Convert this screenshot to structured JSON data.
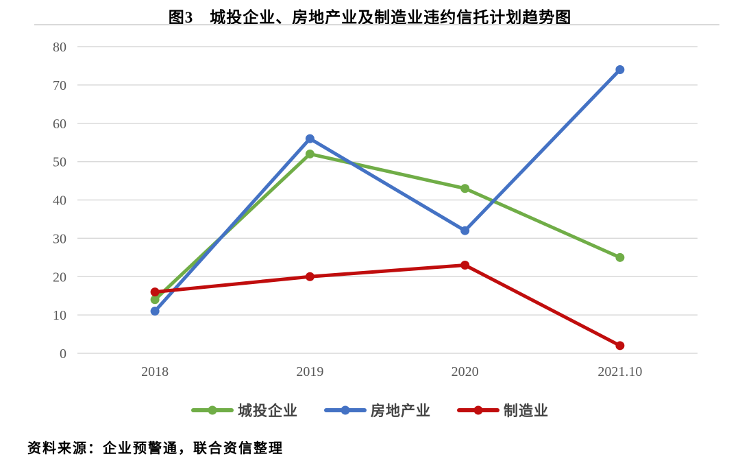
{
  "title": "图3　城投企业、房地产业及制造业违约信托计划趋势图",
  "source_note": "资料来源：企业预警通，联合资信整理",
  "colors": {
    "green_series": "#70AD47",
    "blue_series": "#4472C4",
    "red_series": "#C00D0D",
    "grid": "#D9D9D9",
    "tick_text": "#595959",
    "divider": "#D9D9D9",
    "legend_text": "#444444",
    "background": "#FFFFFF"
  },
  "chart_data": {
    "type": "line",
    "title": "图3　城投企业、房地产业及制造业违约信托计划趋势图",
    "categories": [
      "2018",
      "2019",
      "2020",
      "2021.10"
    ],
    "series": [
      {
        "name": "城投企业",
        "color": "#70AD47",
        "values": [
          14,
          52,
          43,
          25
        ]
      },
      {
        "name": "房地产业",
        "color": "#4472C4",
        "values": [
          11,
          56,
          32,
          74
        ]
      },
      {
        "name": "制造业",
        "color": "#C00D0D",
        "values": [
          16,
          20,
          23,
          2
        ]
      }
    ],
    "xlabel": "",
    "ylabel": "",
    "ylim": [
      0,
      80
    ],
    "ytick_step": 10,
    "y_ticks": [
      0,
      10,
      20,
      30,
      40,
      50,
      60,
      70,
      80
    ],
    "grid": true,
    "gridlines": "horizontal",
    "legend_position": "bottom",
    "marker": "circle",
    "line_width": 5
  }
}
